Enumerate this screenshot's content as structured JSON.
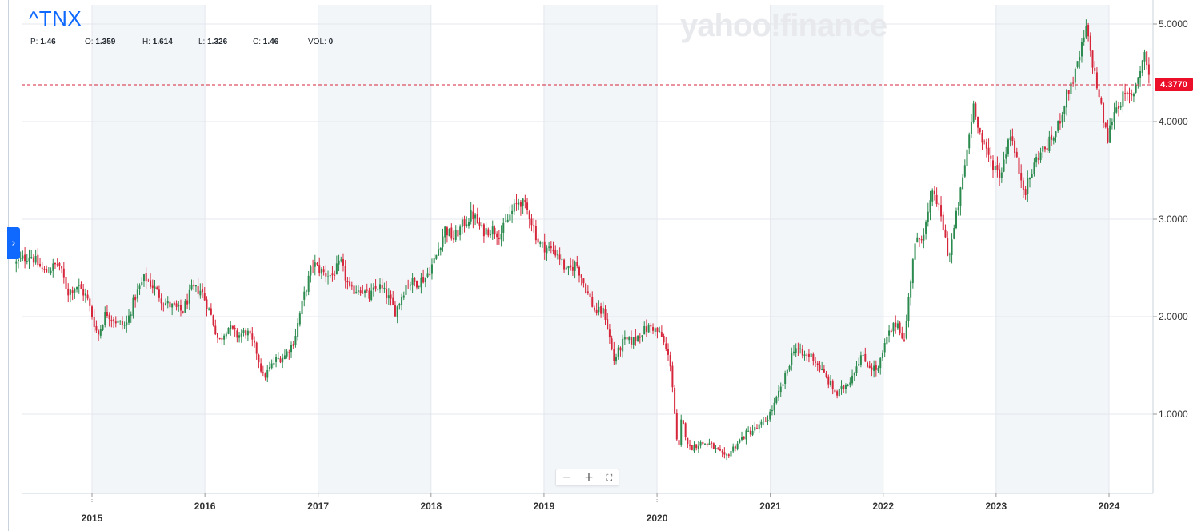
{
  "header": {
    "symbol": "^TNX",
    "stats": [
      {
        "label": "P:",
        "value": "1.46"
      },
      {
        "label": "O:",
        "value": "1.359"
      },
      {
        "label": "H:",
        "value": "1.614"
      },
      {
        "label": "L:",
        "value": "1.326"
      },
      {
        "label": "C:",
        "value": "1.46"
      },
      {
        "label": "VOL:",
        "value": "0"
      }
    ]
  },
  "watermark": "yahoo!finance",
  "current_price": {
    "label": "4.3770",
    "value": 4.377,
    "color": "#eb0f29"
  },
  "controls": {
    "zoom_out": "−",
    "zoom_in": "+",
    "fullscreen": "⛶"
  },
  "colors": {
    "up": "#2b8a4e",
    "down": "#d6263b",
    "shade": "#f3f6f9",
    "accent": "#0f69ff"
  },
  "chart_data": {
    "type": "ohlc-candlestick",
    "title": "^TNX",
    "interval": "weekly",
    "x_range": [
      "2014-05-01",
      "2024-05-15"
    ],
    "ylim": [
      0.2,
      5.1
    ],
    "y_ticks": [
      {
        "value": 1,
        "label": "1.0000"
      },
      {
        "value": 2,
        "label": "2.0000"
      },
      {
        "value": 3,
        "label": "3.0000"
      },
      {
        "value": 4,
        "label": "4.0000"
      },
      {
        "value": 5,
        "label": "5.0000"
      }
    ],
    "x_ticks_upper": [
      {
        "date": "2015-01-01",
        "label": ""
      },
      {
        "date": "2016-01-01",
        "label": "2016"
      },
      {
        "date": "2017-01-01",
        "label": "2017"
      },
      {
        "date": "2018-01-01",
        "label": "2018"
      },
      {
        "date": "2019-01-01",
        "label": "2019"
      },
      {
        "date": "2020-01-01",
        "label": ""
      },
      {
        "date": "2021-01-01",
        "label": "2021"
      },
      {
        "date": "2022-01-01",
        "label": "2022"
      },
      {
        "date": "2023-01-01",
        "label": "2023"
      },
      {
        "date": "2024-01-01",
        "label": "2024"
      }
    ],
    "x_ticks_lower": [
      {
        "date": "2015-01-01",
        "label": "2015"
      },
      {
        "date": "2020-01-01",
        "label": "2020"
      }
    ],
    "shaded_years": [
      [
        "2015-01-01",
        "2016-01-01"
      ],
      [
        "2017-01-01",
        "2018-01-01"
      ],
      [
        "2019-01-01",
        "2020-01-01"
      ],
      [
        "2021-01-01",
        "2022-01-01"
      ],
      [
        "2023-01-01",
        "2024-01-01"
      ]
    ],
    "price_line": 4.377,
    "close_series": [
      [
        "2014-05-01",
        2.55
      ],
      [
        "2014-06-15",
        2.64
      ],
      [
        "2014-08-01",
        2.45
      ],
      [
        "2014-09-15",
        2.55
      ],
      [
        "2014-10-15",
        2.25
      ],
      [
        "2014-11-15",
        2.32
      ],
      [
        "2014-12-15",
        2.2
      ],
      [
        "2015-01-20",
        1.8
      ],
      [
        "2015-02-15",
        2.05
      ],
      [
        "2015-03-20",
        1.95
      ],
      [
        "2015-04-20",
        1.9
      ],
      [
        "2015-05-20",
        2.2
      ],
      [
        "2015-06-20",
        2.4
      ],
      [
        "2015-07-20",
        2.3
      ],
      [
        "2015-08-20",
        2.15
      ],
      [
        "2015-09-20",
        2.1
      ],
      [
        "2015-10-20",
        2.05
      ],
      [
        "2015-11-20",
        2.28
      ],
      [
        "2015-12-20",
        2.27
      ],
      [
        "2016-01-20",
        2.02
      ],
      [
        "2016-02-15",
        1.74
      ],
      [
        "2016-03-15",
        1.9
      ],
      [
        "2016-04-15",
        1.8
      ],
      [
        "2016-05-15",
        1.85
      ],
      [
        "2016-06-15",
        1.65
      ],
      [
        "2016-07-08",
        1.37
      ],
      [
        "2016-08-15",
        1.55
      ],
      [
        "2016-09-15",
        1.6
      ],
      [
        "2016-10-15",
        1.75
      ],
      [
        "2016-11-15",
        2.2
      ],
      [
        "2016-12-15",
        2.55
      ],
      [
        "2017-01-15",
        2.45
      ],
      [
        "2017-02-15",
        2.42
      ],
      [
        "2017-03-15",
        2.55
      ],
      [
        "2017-04-15",
        2.25
      ],
      [
        "2017-05-15",
        2.3
      ],
      [
        "2017-06-15",
        2.2
      ],
      [
        "2017-07-15",
        2.32
      ],
      [
        "2017-08-15",
        2.2
      ],
      [
        "2017-09-08",
        2.05
      ],
      [
        "2017-10-15",
        2.35
      ],
      [
        "2017-11-15",
        2.35
      ],
      [
        "2017-12-15",
        2.4
      ],
      [
        "2018-01-15",
        2.6
      ],
      [
        "2018-02-15",
        2.9
      ],
      [
        "2018-03-15",
        2.8
      ],
      [
        "2018-04-15",
        2.95
      ],
      [
        "2018-05-15",
        3.05
      ],
      [
        "2018-06-15",
        2.88
      ],
      [
        "2018-07-15",
        2.9
      ],
      [
        "2018-08-15",
        2.85
      ],
      [
        "2018-09-15",
        3.05
      ],
      [
        "2018-10-15",
        3.2
      ],
      [
        "2018-11-15",
        3.05
      ],
      [
        "2018-12-15",
        2.75
      ],
      [
        "2019-01-15",
        2.7
      ],
      [
        "2019-02-15",
        2.65
      ],
      [
        "2019-03-15",
        2.45
      ],
      [
        "2019-04-15",
        2.55
      ],
      [
        "2019-05-15",
        2.3
      ],
      [
        "2019-06-15",
        2.05
      ],
      [
        "2019-07-15",
        2.05
      ],
      [
        "2019-08-15",
        1.55
      ],
      [
        "2019-09-15",
        1.75
      ],
      [
        "2019-10-15",
        1.75
      ],
      [
        "2019-11-15",
        1.85
      ],
      [
        "2019-12-15",
        1.9
      ],
      [
        "2020-01-15",
        1.8
      ],
      [
        "2020-02-15",
        1.5
      ],
      [
        "2020-03-09",
        0.55
      ],
      [
        "2020-03-20",
        0.95
      ],
      [
        "2020-04-15",
        0.65
      ],
      [
        "2020-05-15",
        0.7
      ],
      [
        "2020-06-15",
        0.7
      ],
      [
        "2020-07-15",
        0.62
      ],
      [
        "2020-08-07",
        0.55
      ],
      [
        "2020-09-15",
        0.7
      ],
      [
        "2020-10-15",
        0.8
      ],
      [
        "2020-11-15",
        0.85
      ],
      [
        "2020-12-15",
        0.92
      ],
      [
        "2021-01-15",
        1.1
      ],
      [
        "2021-02-15",
        1.35
      ],
      [
        "2021-03-20",
        1.7
      ],
      [
        "2021-04-15",
        1.6
      ],
      [
        "2021-05-15",
        1.6
      ],
      [
        "2021-06-15",
        1.45
      ],
      [
        "2021-07-15",
        1.3
      ],
      [
        "2021-08-05",
        1.2
      ],
      [
        "2021-09-15",
        1.35
      ],
      [
        "2021-10-20",
        1.6
      ],
      [
        "2021-11-15",
        1.5
      ],
      [
        "2021-12-15",
        1.45
      ],
      [
        "2022-01-15",
        1.8
      ],
      [
        "2022-02-15",
        1.95
      ],
      [
        "2022-03-10",
        1.75
      ],
      [
        "2022-04-10",
        2.7
      ],
      [
        "2022-05-15",
        2.9
      ],
      [
        "2022-06-14",
        3.3
      ],
      [
        "2022-07-15",
        2.9
      ],
      [
        "2022-08-01",
        2.6
      ],
      [
        "2022-09-15",
        3.4
      ],
      [
        "2022-10-21",
        4.2
      ],
      [
        "2022-11-15",
        3.8
      ],
      [
        "2022-12-15",
        3.6
      ],
      [
        "2023-01-15",
        3.45
      ],
      [
        "2023-02-15",
        3.9
      ],
      [
        "2023-03-15",
        3.5
      ],
      [
        "2023-04-06",
        3.3
      ],
      [
        "2023-05-15",
        3.65
      ],
      [
        "2023-06-15",
        3.75
      ],
      [
        "2023-07-15",
        3.9
      ],
      [
        "2023-08-15",
        4.25
      ],
      [
        "2023-09-15",
        4.5
      ],
      [
        "2023-10-19",
        4.95
      ],
      [
        "2023-11-15",
        4.5
      ],
      [
        "2023-12-27",
        3.8
      ],
      [
        "2024-01-15",
        4.1
      ],
      [
        "2024-02-15",
        4.25
      ],
      [
        "2024-03-15",
        4.25
      ],
      [
        "2024-04-25",
        4.7
      ],
      [
        "2024-05-15",
        4.4
      ]
    ]
  }
}
